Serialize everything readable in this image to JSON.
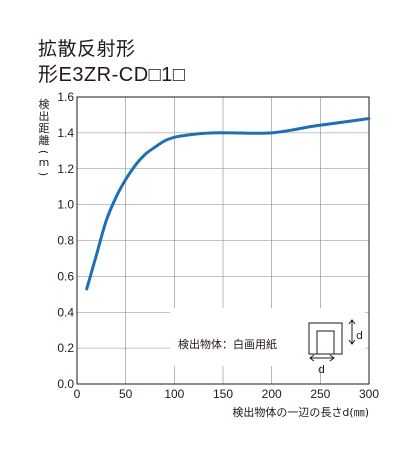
{
  "title": {
    "line1": "拡散反射形",
    "line2": "形E3ZR-CD□1□"
  },
  "chart_data": {
    "type": "line",
    "xlabel": "検出物体の一辺の長さd(㎜)",
    "ylabel": "検出距離(m)",
    "xlim": [
      0,
      300
    ],
    "ylim": [
      0.0,
      1.6
    ],
    "x_ticks": [
      "0",
      "50",
      "100",
      "150",
      "200",
      "250",
      "300"
    ],
    "y_ticks": [
      "0.0",
      "0.2",
      "0.4",
      "0.6",
      "0.8",
      "1.0",
      "1.2",
      "1.4",
      "1.6"
    ],
    "grid": true,
    "series": [
      {
        "color": "#1f6fb5",
        "x": [
          10,
          20,
          30,
          40,
          50,
          60,
          70,
          80,
          90,
          100,
          110,
          125,
          140,
          160,
          180,
          200,
          220,
          240,
          260,
          280,
          300
        ],
        "y": [
          0.53,
          0.72,
          0.91,
          1.04,
          1.14,
          1.22,
          1.28,
          1.32,
          1.355,
          1.375,
          1.385,
          1.395,
          1.4,
          1.4,
          1.398,
          1.4,
          1.415,
          1.435,
          1.45,
          1.465,
          1.48
        ]
      }
    ],
    "annotation": {
      "text": "検出物体：白画用紙",
      "dimension_label": "d"
    }
  }
}
